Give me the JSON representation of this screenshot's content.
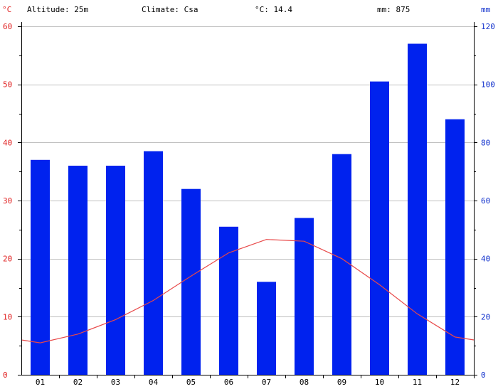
{
  "header": {
    "left_unit": "°C",
    "altitude": "Altitude: 25m",
    "climate": "Climate: Csa",
    "mean_temp": "°C: 14.4",
    "precip_total": "mm: 875",
    "right_unit": "mm"
  },
  "chart_data": {
    "type": "bar",
    "categories": [
      "01",
      "02",
      "03",
      "04",
      "05",
      "06",
      "07",
      "08",
      "09",
      "10",
      "11",
      "12"
    ],
    "series": [
      {
        "type": "bar",
        "axis": "right",
        "values": [
          74,
          72,
          72,
          77,
          64,
          51,
          32,
          54,
          76,
          101,
          114,
          88
        ]
      },
      {
        "type": "line",
        "axis": "left",
        "values": [
          5.5,
          7,
          9.5,
          12.8,
          17,
          21,
          23.3,
          23,
          20,
          15.5,
          10.5,
          6.5
        ]
      }
    ],
    "left_axis": {
      "ylim": [
        0,
        60
      ],
      "ticks": [
        0,
        10,
        20,
        30,
        40,
        50,
        60
      ],
      "color": "#e02020"
    },
    "right_axis": {
      "ylim": [
        0,
        120
      ],
      "ticks": [
        0,
        20,
        40,
        60,
        80,
        100,
        120
      ],
      "color": "#1030cc"
    },
    "colors": {
      "bars": "#0022ee",
      "line": "#e84848",
      "grid": "#c0c0c0"
    },
    "grid": true,
    "line_edge_values": {
      "start": 6,
      "end": 6
    }
  }
}
